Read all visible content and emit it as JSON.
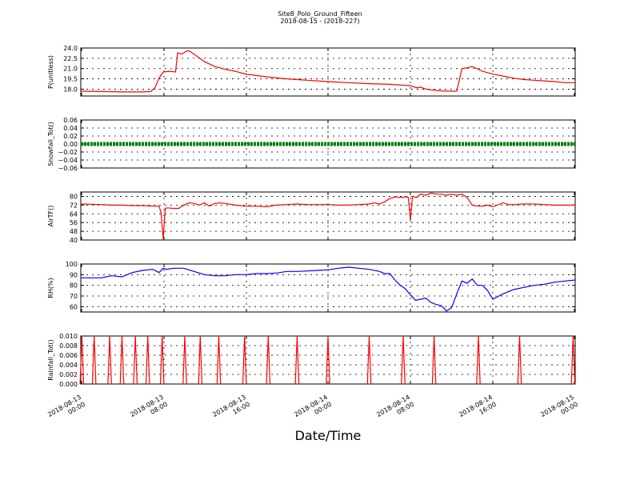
{
  "figure": {
    "title": "Site8_Polo_Ground_Fifteen",
    "subtitle": "2018-08-15 - (2018-227)",
    "xlabel": "Date/Time"
  },
  "chart_data": [
    {
      "type": "line",
      "ylabel": "P(unitless)",
      "ylim": [
        17.0,
        24.0
      ],
      "yticks": [
        "18.0",
        "19.5",
        "21.0",
        "22.5",
        "24.0"
      ],
      "ytick_values": [
        18.0,
        19.5,
        21.0,
        22.5,
        24.0
      ],
      "xlim": [
        0,
        48
      ],
      "grid": true,
      "series": [
        {
          "color": "#ff0000",
          "x": [
            0,
            2,
            4,
            6,
            6.8,
            7.2,
            7.6,
            8,
            8.6,
            9.2,
            9.4,
            9.8,
            10.2,
            10.5,
            11,
            12,
            13,
            14,
            15,
            16,
            18,
            20,
            22,
            24,
            26,
            28,
            30,
            32,
            32.6,
            33,
            33.5,
            34,
            35,
            36,
            36.5,
            37,
            37.5,
            38,
            39,
            40,
            41,
            42,
            43,
            44,
            45,
            46,
            47,
            48
          ],
          "y": [
            17.7,
            17.65,
            17.6,
            17.6,
            17.65,
            18.2,
            19.6,
            20.5,
            20.6,
            20.5,
            23.3,
            23.1,
            23.5,
            23.6,
            23.1,
            22.0,
            21.3,
            20.9,
            20.6,
            20.2,
            19.8,
            19.5,
            19.3,
            19.1,
            18.95,
            18.8,
            18.7,
            18.5,
            18.2,
            18.3,
            18.0,
            17.9,
            17.75,
            17.7,
            17.7,
            21.0,
            21.1,
            21.3,
            20.6,
            20.2,
            19.9,
            19.6,
            19.4,
            19.3,
            19.2,
            19.1,
            18.95,
            18.95
          ]
        }
      ]
    },
    {
      "type": "scatter",
      "ylabel": "Snowfall_Tot()",
      "ylim": [
        -0.06,
        0.06
      ],
      "yticks": [
        "−0.06",
        "−0.04",
        "−0.02",
        "0.00",
        "0.02",
        "0.04",
        "0.06"
      ],
      "ytick_values": [
        -0.06,
        -0.04,
        -0.02,
        0.0,
        0.02,
        0.04,
        0.06
      ],
      "xlim": [
        0,
        48
      ],
      "grid": true,
      "series": [
        {
          "color": "#008000",
          "constant_value": 0.0,
          "x_range": [
            0,
            48
          ]
        }
      ]
    },
    {
      "type": "line",
      "ylabel": "AirTF()",
      "ylim": [
        40,
        84
      ],
      "yticks": [
        "40",
        "48",
        "56",
        "64",
        "72",
        "80"
      ],
      "ytick_values": [
        40,
        48,
        56,
        64,
        72,
        80
      ],
      "xlim": [
        0,
        48
      ],
      "grid": true,
      "series": [
        {
          "color": "#ff0000",
          "x": [
            0,
            2,
            3,
            4,
            5,
            6,
            7,
            7.6,
            7.8,
            8.0,
            8.2,
            8.4,
            9.0,
            9.5,
            10,
            10.5,
            11,
            11.5,
            12,
            12.5,
            13,
            13.5,
            14,
            15,
            16,
            17,
            18,
            19,
            20,
            21,
            22,
            23,
            24,
            25,
            26,
            27,
            28,
            28.5,
            29,
            29.5,
            30,
            30.6,
            31,
            31.6,
            31.8,
            32,
            32.2,
            32.6,
            33,
            33.5,
            34,
            34.5,
            35,
            35.5,
            36,
            36.5,
            37,
            37.5,
            38,
            38.5,
            39,
            39.5,
            40,
            41,
            41.5,
            42,
            43,
            44,
            45,
            46,
            47,
            48
          ],
          "y": [
            73,
            72.5,
            72,
            72,
            71.5,
            71.5,
            71,
            71,
            65,
            41,
            69,
            69.5,
            69,
            69,
            72,
            74,
            73.5,
            72,
            74,
            71,
            73.5,
            74,
            73.5,
            72,
            71,
            71,
            70.5,
            72,
            72.5,
            73,
            72.5,
            72.5,
            72.5,
            72,
            72,
            72.5,
            73,
            74,
            73,
            75,
            78,
            79.5,
            79,
            79.5,
            79,
            58,
            80,
            79,
            82,
            81,
            83,
            82,
            82,
            81,
            82,
            81,
            82,
            79,
            72,
            71,
            71,
            72,
            70.5,
            74,
            72.5,
            72.5,
            73,
            73,
            72.5,
            72,
            72,
            72
          ]
        }
      ]
    },
    {
      "type": "line",
      "ylabel": "RH(%)",
      "ylim": [
        55,
        100
      ],
      "yticks": [
        "60",
        "70",
        "80",
        "90",
        "100"
      ],
      "ytick_values": [
        60,
        70,
        80,
        90,
        100
      ],
      "xlim": [
        0,
        48
      ],
      "grid": true,
      "series": [
        {
          "color": "#0000ff",
          "x": [
            0,
            1,
            2,
            3,
            4,
            5,
            6,
            7,
            7.6,
            8,
            8.3,
            9,
            10,
            11,
            12,
            13,
            14,
            15,
            16,
            17,
            18,
            19,
            20,
            21,
            22,
            23,
            24,
            25,
            26,
            27,
            28,
            29,
            29.5,
            30,
            30.5,
            31,
            31.5,
            32,
            32.5,
            33,
            33.5,
            34,
            34.5,
            35,
            35.5,
            36,
            36.5,
            37,
            37.5,
            38,
            38.5,
            39,
            39.5,
            40,
            41,
            42,
            43,
            44,
            45,
            46,
            47,
            48
          ],
          "y": [
            87,
            87,
            87,
            89,
            88,
            92,
            94,
            95,
            92,
            96,
            95,
            96,
            96,
            93,
            90,
            89,
            89,
            90,
            90,
            91,
            91,
            91.5,
            93,
            93,
            93.5,
            94,
            94.5,
            96,
            97,
            96,
            95,
            93,
            91,
            91,
            85,
            80,
            77,
            71,
            66,
            67,
            68,
            64,
            62,
            61,
            56,
            59,
            72,
            84,
            82,
            86,
            80,
            80,
            75,
            67,
            72,
            76,
            78,
            80,
            81,
            83,
            84,
            85
          ]
        }
      ]
    },
    {
      "type": "line",
      "ylabel": "Rainfall_Tot()",
      "ylim": [
        0.0,
        0.01
      ],
      "yticks": [
        "0.000",
        "0.002",
        "0.004",
        "0.006",
        "0.008",
        "0.010"
      ],
      "ytick_values": [
        0.0,
        0.002,
        0.004,
        0.006,
        0.008,
        0.01
      ],
      "xlim": [
        0,
        48
      ],
      "xticks": [
        {
          "value": 0,
          "label": "2018-08-13\n00:00"
        },
        {
          "value": 8,
          "label": "2018-08-13\n08:00"
        },
        {
          "value": 16,
          "label": "2018-08-13\n16:00"
        },
        {
          "value": 24,
          "label": "2018-08-14\n00:00"
        },
        {
          "value": 32,
          "label": "2018-08-14\n08:00"
        },
        {
          "value": 40,
          "label": "2018-08-14\n16:00"
        },
        {
          "value": 48,
          "label": "2018-08-15\n00:00"
        }
      ],
      "grid": true,
      "series": [
        {
          "color": "#ff0000",
          "spike_times": [
            0.1,
            1.3,
            2.8,
            4.0,
            5.3,
            6.5,
            7.9,
            10.1,
            11.6,
            13.4,
            15.9,
            18.2,
            21.0,
            24.0,
            28.0,
            31.3,
            34.3,
            38.6,
            42.6,
            47.8
          ],
          "spike_value": 0.01
        }
      ]
    }
  ]
}
